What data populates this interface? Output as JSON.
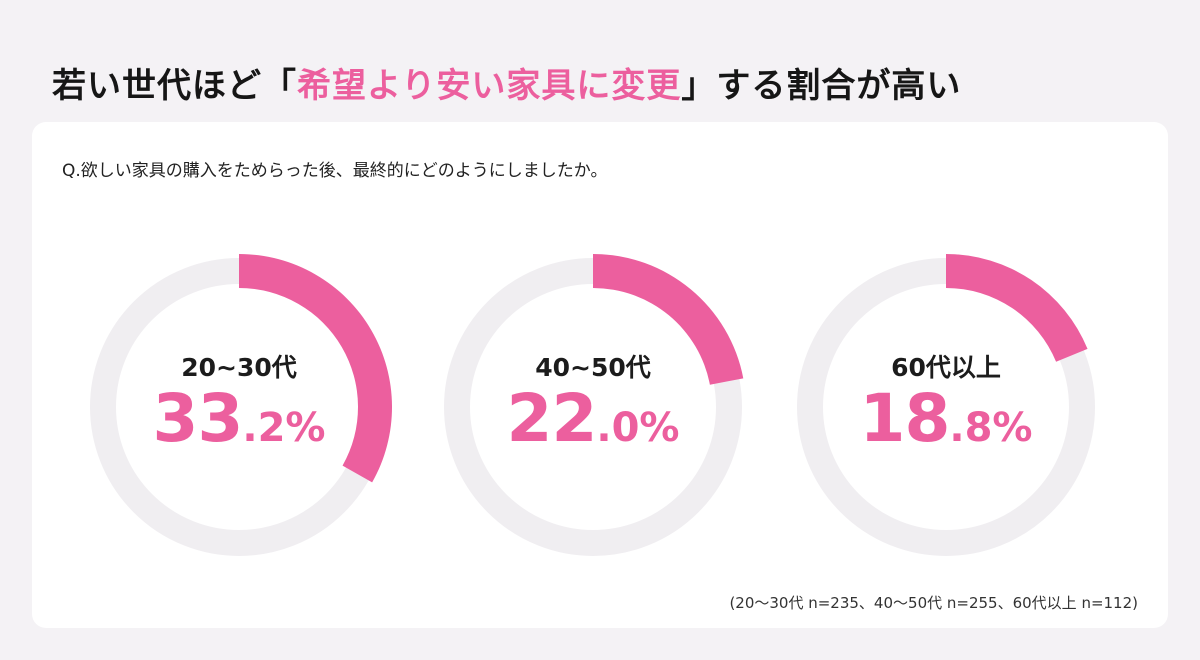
{
  "title": {
    "before": "若い世代ほど「",
    "highlight": "希望より安い家具に変更",
    "after": "」する割合が高い"
  },
  "question": "Q.欲しい家具の購入をためらった後、最終的にどのようにしましたか。",
  "footnote": "(20〜30代 n=235、40〜50代 n=255、60代以上 n=112)",
  "colors": {
    "accent": "#ec5f9e",
    "track": "#f0eef1"
  },
  "chart_data": {
    "type": "pie",
    "style": "donut",
    "categories": [
      "20~30代",
      "40~50代",
      "60代以上"
    ],
    "values": [
      33.2,
      22.0,
      18.8
    ],
    "unit": "%",
    "display": [
      {
        "label": "20~30代",
        "int": "33",
        "dec": ".2%",
        "value": 33.2
      },
      {
        "label": "40~50代",
        "int": "22",
        "dec": ".0%",
        "value": 22.0
      },
      {
        "label": "60代以上",
        "int": "18",
        "dec": ".8%",
        "value": 18.8
      }
    ]
  }
}
